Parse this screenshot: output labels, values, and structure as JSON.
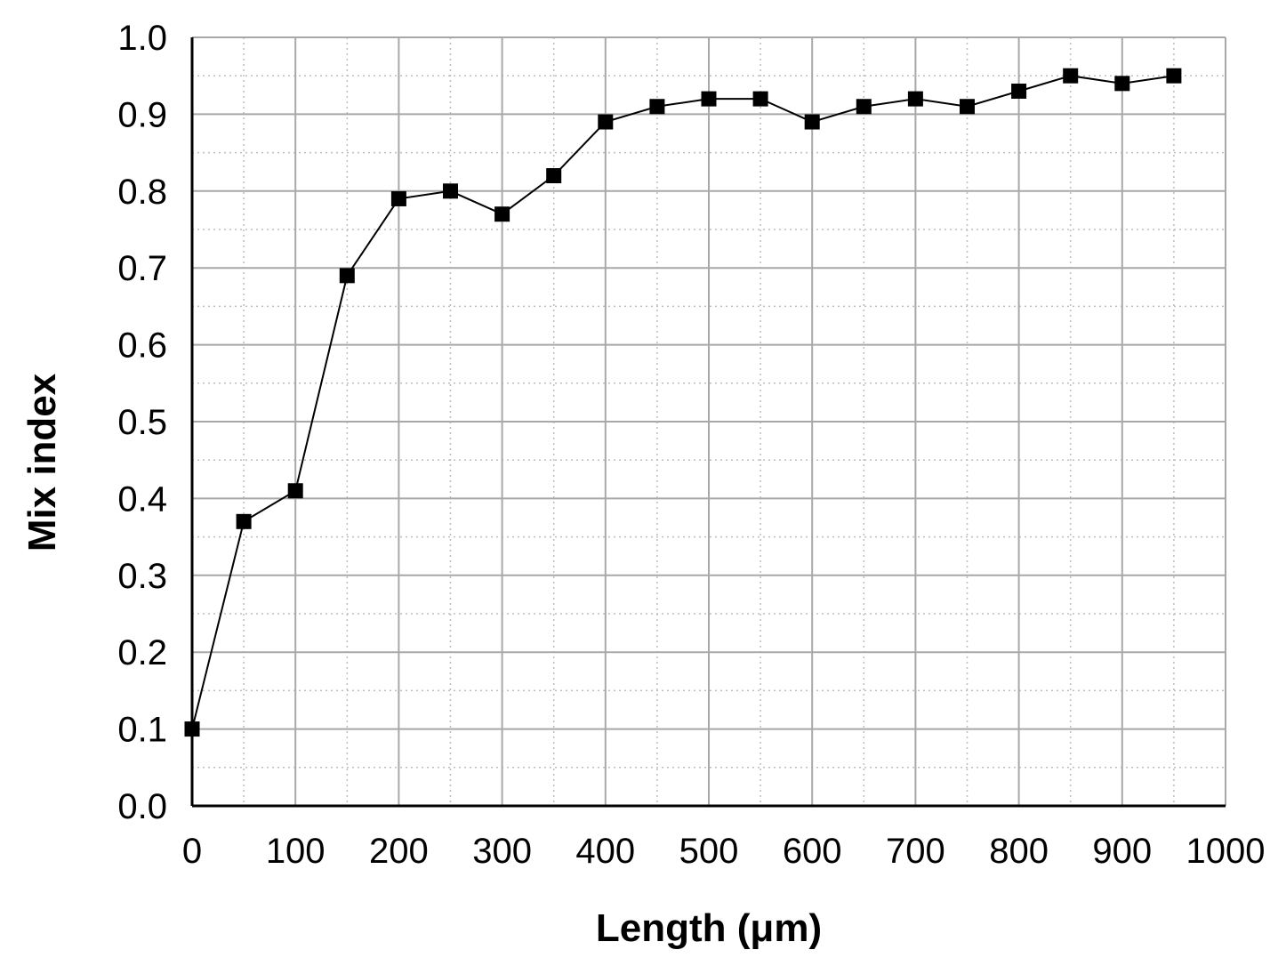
{
  "chart_data": {
    "type": "line",
    "xlabel": "Length (μm)",
    "ylabel": "Mix index",
    "xlim": [
      0,
      1000
    ],
    "ylim": [
      0.0,
      1.0
    ],
    "x_ticks": [
      "0",
      "100",
      "200",
      "300",
      "400",
      "500",
      "600",
      "700",
      "800",
      "900",
      "1000"
    ],
    "y_ticks": [
      "0.0",
      "0.1",
      "0.2",
      "0.3",
      "0.4",
      "0.5",
      "0.6",
      "0.7",
      "0.8",
      "0.9",
      "1.0"
    ],
    "grid": true,
    "marker": "square",
    "series": [
      {
        "x": [
          0,
          50,
          100,
          150,
          200,
          250,
          300,
          350,
          400,
          450,
          500,
          550,
          600,
          650,
          700,
          750,
          800,
          850,
          900,
          950
        ],
        "y": [
          0.1,
          0.37,
          0.41,
          0.69,
          0.79,
          0.8,
          0.77,
          0.82,
          0.89,
          0.91,
          0.92,
          0.92,
          0.89,
          0.91,
          0.92,
          0.91,
          0.93,
          0.95,
          0.94,
          0.95
        ]
      }
    ]
  }
}
